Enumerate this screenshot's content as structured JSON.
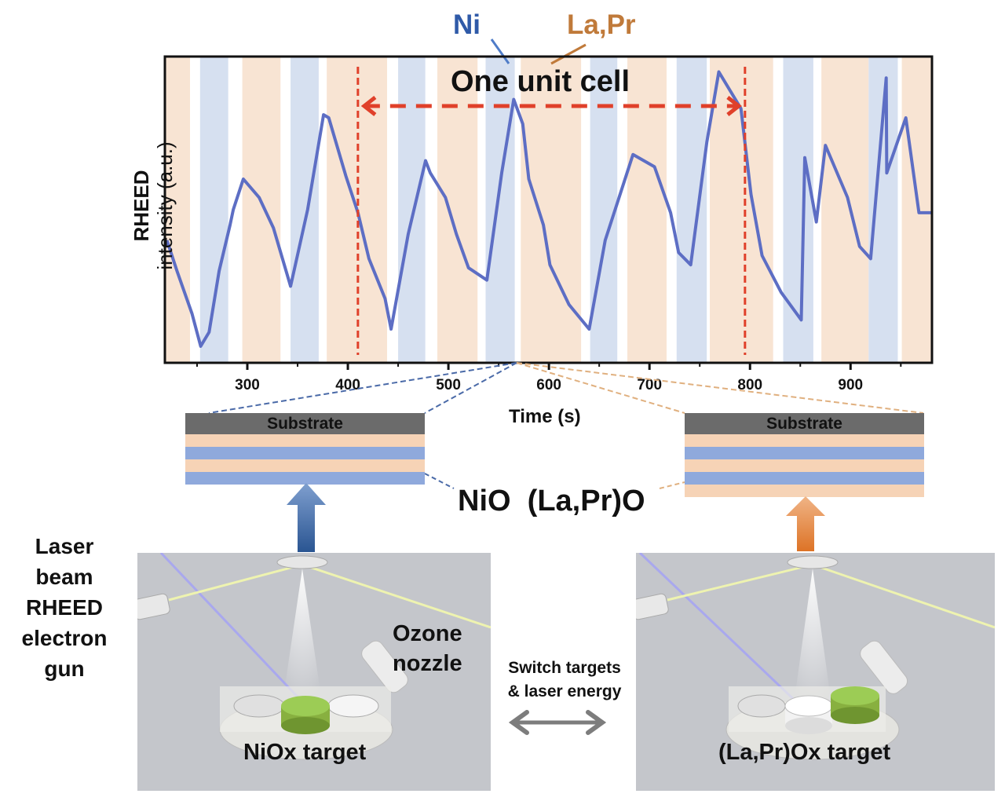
{
  "chart_data": {
    "type": "line",
    "title": "",
    "xlabel": "Time (s)",
    "ylabel_line1": "RHEED",
    "ylabel_line2": "intensity (a.u.)",
    "xlim": [
      218,
      981
    ],
    "ylim": [
      0,
      1
    ],
    "x_ticks": [
      300,
      400,
      500,
      600,
      700,
      800,
      900
    ],
    "x_minor_ticks": [
      250,
      350,
      450,
      550,
      650,
      750,
      850,
      950
    ],
    "grid": false,
    "legend": [
      {
        "label": "Ni",
        "color": "#2f5aa8",
        "band_color": "#d6e0f0"
      },
      {
        "label": "La,Pr",
        "color": "#c07a3a",
        "band_color": "#f8e4d3"
      }
    ],
    "bands": [
      {
        "kind": "La,Pr",
        "start": 218,
        "end": 243
      },
      {
        "kind": "Ni",
        "start": 253,
        "end": 281
      },
      {
        "kind": "La,Pr",
        "start": 295,
        "end": 333
      },
      {
        "kind": "Ni",
        "start": 343,
        "end": 371
      },
      {
        "kind": "La,Pr",
        "start": 379,
        "end": 439
      },
      {
        "kind": "Ni",
        "start": 450,
        "end": 477
      },
      {
        "kind": "La,Pr",
        "start": 489,
        "end": 529
      },
      {
        "kind": "Ni",
        "start": 537,
        "end": 566
      },
      {
        "kind": "La,Pr",
        "start": 572,
        "end": 632
      },
      {
        "kind": "Ni",
        "start": 641,
        "end": 668
      },
      {
        "kind": "La,Pr",
        "start": 678,
        "end": 717
      },
      {
        "kind": "Ni",
        "start": 727,
        "end": 757
      },
      {
        "kind": "La,Pr",
        "start": 760,
        "end": 823
      },
      {
        "kind": "Ni",
        "start": 833,
        "end": 863
      },
      {
        "kind": "La,Pr",
        "start": 871,
        "end": 918
      },
      {
        "kind": "Ni",
        "start": 918,
        "end": 947
      },
      {
        "kind": "La,Pr",
        "start": 951,
        "end": 981
      }
    ],
    "series": [
      {
        "name": "RHEED intensity",
        "color": "#3f5fc8",
        "x": [
          220,
          230,
          245,
          253.6,
          262,
          272,
          282.8,
          286,
          296,
          311.7,
          326,
          343,
          360,
          375.8,
          381,
          398,
          410,
          421,
          437,
          443,
          460,
          477.3,
          482,
          497,
          508,
          520,
          538.3,
          553,
          565,
          574,
          580,
          594.5,
          601,
          620,
          640,
          656,
          683.6,
          705,
          721,
          729,
          741,
          757,
          769,
          791,
          801,
          812,
          831,
          851,
          866,
          875,
          854.5,
          897,
          909,
          920,
          936,
          935.5,
          955,
          968,
          979,
          981
        ],
        "values": [
          0.4,
          0.3,
          0.16,
          0.054,
          0.1,
          0.3,
          0.45,
          0.5,
          0.6,
          0.54,
          0.44,
          0.25,
          0.5,
          0.81,
          0.8,
          0.61,
          0.49,
          0.34,
          0.21,
          0.11,
          0.42,
          0.66,
          0.62,
          0.54,
          0.42,
          0.31,
          0.27,
          0.62,
          0.86,
          0.78,
          0.6,
          0.45,
          0.32,
          0.19,
          0.11,
          0.4,
          0.68,
          0.64,
          0.49,
          0.36,
          0.32,
          0.72,
          0.95,
          0.83,
          0.55,
          0.35,
          0.23,
          0.14,
          0.46,
          0.71,
          0.67,
          0.54,
          0.38,
          0.34,
          0.62,
          0.93,
          0.8,
          0.49,
          0.49,
          0.49
        ]
      }
    ],
    "annotations": {
      "unit_cell_label": "One unit cell",
      "unit_cell_start": 410,
      "unit_cell_end": 795,
      "ni_label": "Ni",
      "lapr_label": "La,Pr"
    }
  },
  "stacks": {
    "left": {
      "substrate_label": "Substrate",
      "layers": [
        "lapr",
        "ni",
        "lapr",
        "ni"
      ]
    },
    "right": {
      "substrate_label": "Substrate",
      "layers": [
        "lapr",
        "ni",
        "lapr",
        "ni",
        "lapr"
      ]
    }
  },
  "materials_label": "NiO  (La,Pr)O",
  "left_labels": [
    "Laser",
    "beam",
    "RHEED",
    "electron",
    "gun"
  ],
  "ozone_label_line1": "Ozone",
  "ozone_label_line2": "nozzle",
  "switch_label_line1": "Switch targets",
  "switch_label_line2": "& laser energy",
  "left_target_label": "NiOx target",
  "right_target_label": "(La,Pr)Ox target",
  "colors": {
    "ni_layer": "#8fa9dc",
    "lapr_layer": "#f6d3b6",
    "substrate": "#6b6b6b",
    "unit_cell_marker": "#e0402a",
    "arrow_ni": "#2f5a93",
    "arrow_lapr": "#e07a30",
    "nio_target": "#8ab34a"
  }
}
